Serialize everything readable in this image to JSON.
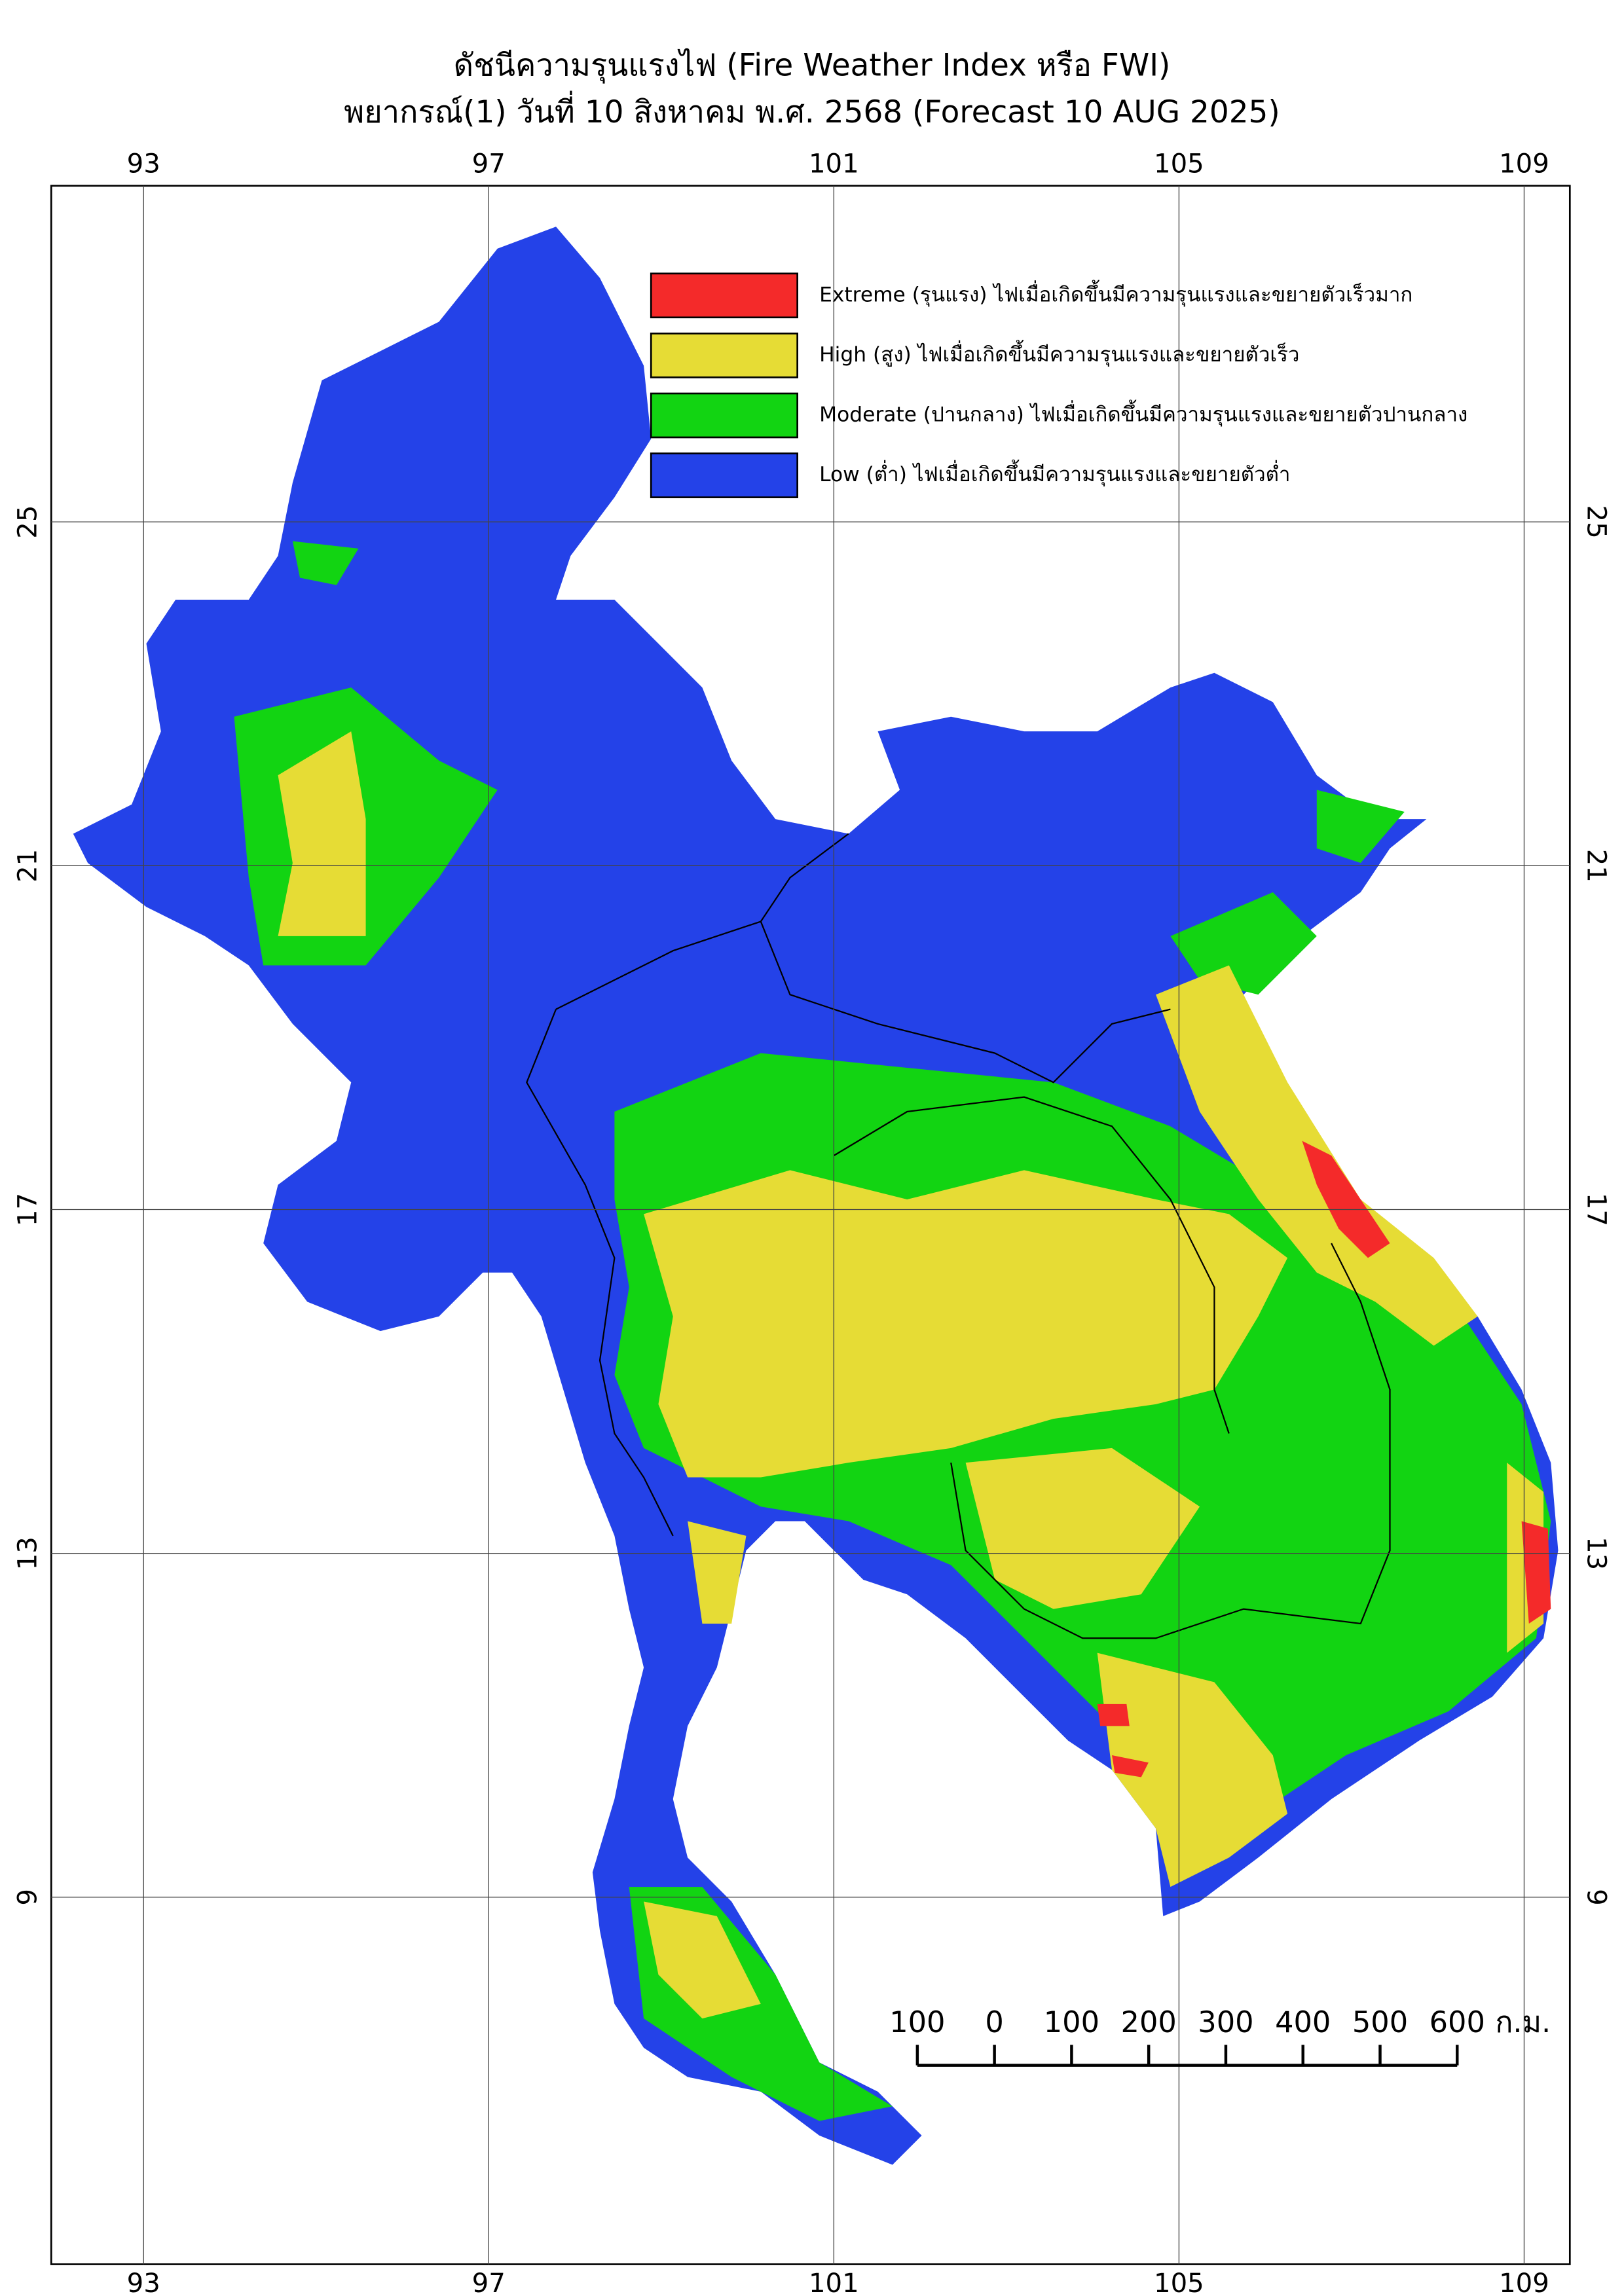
{
  "map": {
    "title": "ดัชนีความรุนแรงไฟ (Fire Weather Index หรือ FWI)",
    "subtitle": "พยากรณ์(1) วันที่ 10 สิงหาคม พ.ศ. 2568 (Forecast 10 AUG 2025)",
    "xlim": [
      91.93,
      109.53
    ],
    "ylim": [
      4.73,
      28.91
    ],
    "xticks": [
      93,
      97,
      101,
      105,
      109
    ],
    "yticks": [
      25,
      21,
      17,
      13,
      9
    ],
    "grid": true,
    "legend": [
      {
        "label": "Extreme (รุนแรง) ไฟเมื่อเกิดขึ้นมีความรุนแรงและขยายตัวเร็วมาก",
        "color": "#f42a2a"
      },
      {
        "label": "High (สูง) ไฟเมื่อเกิดขึ้นมีความรุนแรงและขยายตัวเร็ว",
        "color": "#e6dc35"
      },
      {
        "label": "Moderate (ปานกลาง) ไฟเมื่อเกิดขึ้นมีความรุนแรงและขยายตัวปานกลาง",
        "color": "#12d412"
      },
      {
        "label": "Low (ต่ำ) ไฟเมื่อเกิดขึ้นมีความรุนแรงและขยายตัวต่ำ",
        "color": "#2442e8"
      }
    ],
    "scale_bar": {
      "ticks": [
        {
          "value": -100,
          "label": "100"
        },
        0,
        100,
        200,
        300,
        400,
        500,
        600
      ],
      "unit": "ก.ม."
    }
  }
}
